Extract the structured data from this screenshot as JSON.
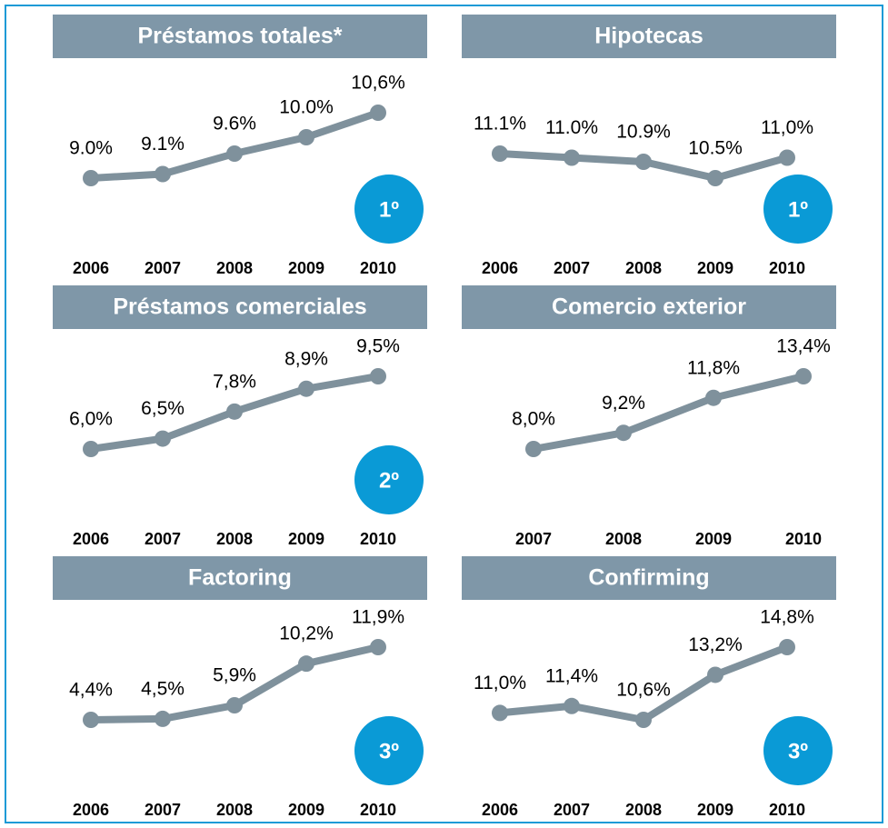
{
  "chart_data": [
    {
      "type": "line",
      "title": "Préstamos totales*",
      "categories": [
        "2006",
        "2007",
        "2008",
        "2009",
        "2010"
      ],
      "values": [
        9.0,
        9.1,
        9.6,
        10.0,
        10.6
      ],
      "value_labels": [
        "9.0%",
        "9.1%",
        "9.6%",
        "10.0%",
        "10,6%"
      ],
      "badge": "1º",
      "color": "#7f919c"
    },
    {
      "type": "line",
      "title": "Hipotecas",
      "categories": [
        "2006",
        "2007",
        "2008",
        "2009",
        "2010"
      ],
      "values": [
        11.1,
        11.0,
        10.9,
        10.5,
        11.0
      ],
      "value_labels": [
        "11.1%",
        "11.0%",
        "10.9%",
        "10.5%",
        "11,0%"
      ],
      "badge": "1º",
      "color": "#7f919c"
    },
    {
      "type": "line",
      "title": "Préstamos comerciales",
      "categories": [
        "2006",
        "2007",
        "2008",
        "2009",
        "2010"
      ],
      "values": [
        6.0,
        6.5,
        7.8,
        8.9,
        9.5
      ],
      "value_labels": [
        "6,0%",
        "6,5%",
        "7,8%",
        "8,9%",
        "9,5%"
      ],
      "badge": "2º",
      "color": "#7f919c"
    },
    {
      "type": "line",
      "title": "Comercio exterior",
      "categories": [
        "2007",
        "2008",
        "2009",
        "2010"
      ],
      "values": [
        8.0,
        9.2,
        11.8,
        13.4
      ],
      "value_labels": [
        "8,0%",
        "9,2%",
        "11,8%",
        "13,4%"
      ],
      "color": "#7f919c"
    },
    {
      "type": "line",
      "title": "Factoring",
      "categories": [
        "2006",
        "2007",
        "2008",
        "2009",
        "2010"
      ],
      "values": [
        4.4,
        4.5,
        5.9,
        10.2,
        11.9
      ],
      "value_labels": [
        "4,4%",
        "4,5%",
        "5,9%",
        "10,2%",
        "11,9%"
      ],
      "badge": "3º",
      "color": "#7f919c"
    },
    {
      "type": "line",
      "title": "Confirming",
      "categories": [
        "2006",
        "2007",
        "2008",
        "2009",
        "2010"
      ],
      "values": [
        11.0,
        11.4,
        10.6,
        13.2,
        14.8
      ],
      "value_labels": [
        "11,0%",
        "11,4%",
        "10,6%",
        "13,2%",
        "14,8%"
      ],
      "badge": "3º",
      "color": "#7f919c"
    }
  ]
}
